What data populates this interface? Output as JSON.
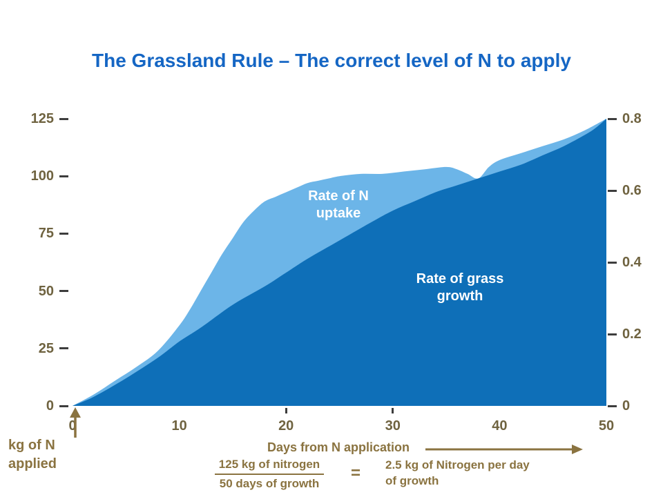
{
  "slide": {
    "title": "The Grassland Rule – The correct level of N to apply"
  },
  "colors": {
    "title_blue": "#1566C4",
    "uptake_light_blue": "#6CB5E8",
    "growth_dark_blue": "#0E6FB8",
    "axis_number_brown": "#6F6340",
    "annotation_brown": "#8A7340",
    "tick_dash_gray": "#3D3D3D",
    "chart_label_white": "#FFFFFF"
  },
  "axes": {
    "left_tick_labels": [
      "0",
      "25",
      "50",
      "75",
      "100",
      "125"
    ],
    "right_tick_labels": [
      "0",
      "0.2",
      "0.4",
      "0.6",
      "0.8"
    ],
    "x_tick_labels": [
      "0",
      "10",
      "20",
      "30",
      "40",
      "50"
    ],
    "x_axis_small_tick_values": [
      20,
      30
    ],
    "x_axis_title": "Days from N application",
    "y_axis_title_line1": "kg of N",
    "y_axis_title_line2": "applied"
  },
  "chart_data": {
    "type": "area",
    "title": "The Grassland Rule – The correct level of N to apply",
    "xlabel": "Days from N application",
    "ylabel_left": "kg of N applied",
    "x_range": [
      0,
      50
    ],
    "y_left_range": [
      0,
      125
    ],
    "y_right_range": [
      0,
      0.8
    ],
    "grid": false,
    "series": [
      {
        "name": "Rate of N uptake",
        "fill": "#6CB5E8",
        "x": [
          0,
          2,
          4,
          6,
          8,
          10,
          11,
          12,
          13,
          14,
          15,
          16,
          17,
          18,
          19,
          20,
          21,
          22,
          23,
          24,
          25,
          27,
          29,
          31,
          33,
          35,
          36,
          37,
          38,
          39,
          40,
          42,
          44,
          46,
          48,
          50
        ],
        "values": [
          0,
          5,
          11,
          17,
          24,
          35,
          42,
          50,
          58,
          66,
          73,
          80,
          85,
          89,
          91,
          93,
          95,
          97,
          98,
          99,
          100,
          101,
          101,
          102,
          103,
          104,
          103,
          101,
          99,
          104,
          107,
          110,
          113,
          116,
          120,
          125
        ]
      },
      {
        "name": "Rate of grass growth",
        "fill": "#0E6FB8",
        "x": [
          0,
          2,
          5,
          8,
          10,
          12,
          15,
          18,
          20,
          22,
          25,
          28,
          30,
          32,
          34,
          36,
          38,
          40,
          42,
          44,
          46,
          48,
          49,
          50
        ],
        "values": [
          0,
          4,
          12,
          21,
          28,
          34,
          44,
          52,
          58,
          64,
          72,
          80,
          85,
          89,
          93,
          96,
          99,
          102,
          105,
          109,
          113,
          118,
          121,
          125
        ]
      }
    ],
    "series_labels": {
      "uptake_line1": "Rate of N",
      "uptake_line2": "uptake",
      "growth_line1": "Rate of grass",
      "growth_line2": "growth"
    }
  },
  "formula": {
    "numerator": "125 kg of nitrogen",
    "denominator": "50 days of growth",
    "equals_sign": "=",
    "result_line1": "2.5 kg of Nitrogen per day",
    "result_line2": "of growth"
  }
}
